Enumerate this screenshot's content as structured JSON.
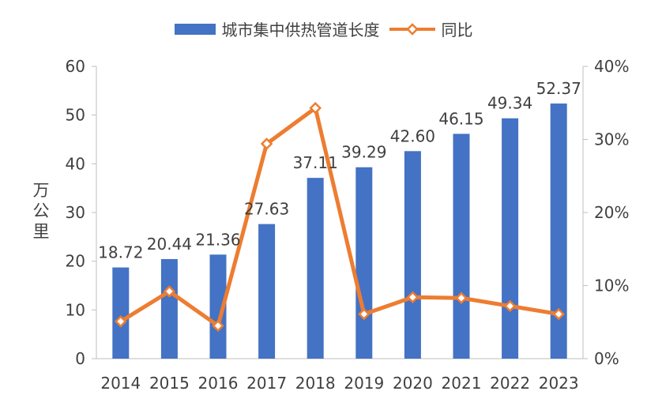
{
  "chart_data": {
    "type": "bar+line",
    "title": "",
    "categories": [
      "2014",
      "2015",
      "2016",
      "2017",
      "2018",
      "2019",
      "2020",
      "2021",
      "2022",
      "2023"
    ],
    "series": [
      {
        "name": "城市集中供热管道长度",
        "type": "bar",
        "axis": "left",
        "color": "#4472C4",
        "values": [
          18.72,
          20.44,
          21.36,
          27.63,
          37.11,
          39.29,
          42.6,
          46.15,
          49.34,
          52.37
        ],
        "labels": [
          "18.72",
          "20.44",
          "21.36",
          "27.63",
          "37.11",
          "39.29",
          "42.60",
          "46.15",
          "49.34",
          "52.37"
        ]
      },
      {
        "name": "同比",
        "type": "line",
        "axis": "right",
        "color": "#ED7D31",
        "marker": "diamond",
        "values": [
          5.1,
          9.2,
          4.5,
          29.4,
          34.3,
          6.1,
          8.4,
          8.3,
          7.2,
          6.1
        ]
      }
    ],
    "ylabel": "万公里",
    "ylim": [
      0,
      60
    ],
    "yticks": [
      "0",
      "10",
      "20",
      "30",
      "40",
      "50",
      "60"
    ],
    "y2lim": [
      0,
      40
    ],
    "y2ticks": [
      "0%",
      "10%",
      "20%",
      "30%",
      "40%"
    ],
    "legend": "top-center",
    "grid": false
  }
}
